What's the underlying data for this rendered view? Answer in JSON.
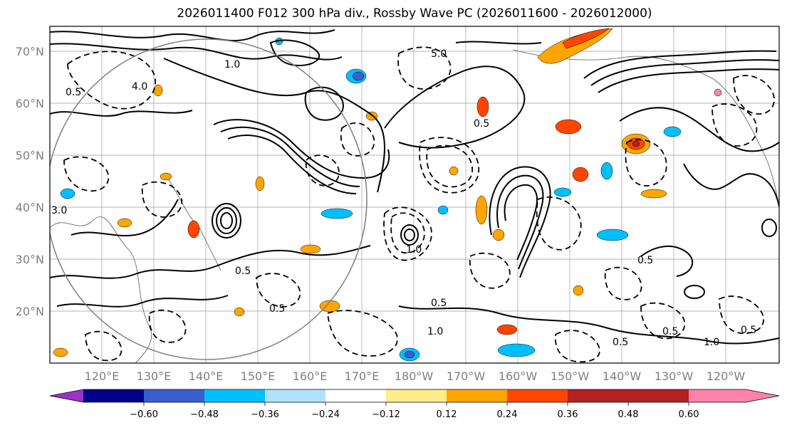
{
  "title": "2026011400 F012 300 hPa div., Rossby Wave PC (2026011600 - 2026012000)",
  "lat_labels": [
    "70°N",
    "60°N",
    "50°N",
    "40°N",
    "30°N",
    "20°N"
  ],
  "lon_labels": [
    "120°E",
    "130°E",
    "140°E",
    "150°E",
    "160°E",
    "170°E",
    "180°W",
    "170°W",
    "160°W",
    "150°W",
    "140°W",
    "130°W",
    "120°W"
  ],
  "colorbar": {
    "ticks": [
      "−0.60",
      "−0.48",
      "−0.36",
      "−0.24",
      "−0.12",
      "0.12",
      "0.24",
      "0.36",
      "0.48",
      "0.60"
    ],
    "colors": [
      "#9932cc",
      "#00008b",
      "#3a5fcd",
      "#00bfff",
      "#b0e2ff",
      "#ffffff",
      "#ffec8b",
      "#ffa500",
      "#ff4500",
      "#b22222",
      "#ff82ab"
    ]
  },
  "contour_labels": [
    "5.0",
    "1.0",
    "0.5",
    "0.5",
    "1.0",
    "0.5",
    "1.0",
    "0.5",
    "3.0",
    "4.0",
    "0.5",
    "0.5",
    "0.5",
    "1.0",
    "0.5",
    "0.5"
  ]
}
